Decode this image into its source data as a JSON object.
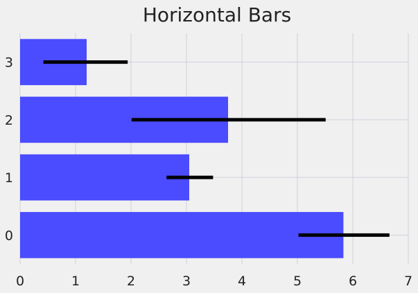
{
  "chart_data": {
    "type": "bar",
    "orientation": "horizontal",
    "title": "Horizontal Bars",
    "xlabel": "",
    "ylabel": "",
    "categories": [
      "0",
      "1",
      "2",
      "3"
    ],
    "values": [
      5.83,
      3.05,
      3.75,
      1.2
    ],
    "error_intervals": [
      [
        5.02,
        6.66
      ],
      [
        2.64,
        3.48
      ],
      [
        2.01,
        5.51
      ],
      [
        0.42,
        1.94
      ]
    ],
    "xlim": [
      0,
      7
    ],
    "xticks": [
      "0",
      "1",
      "2",
      "3",
      "4",
      "5",
      "6",
      "7"
    ],
    "grid": true,
    "colors": {
      "background": "#f0f0f0",
      "bar": "#4b4bff",
      "error_bar": "#000000",
      "grid": "#cfcfdc",
      "text": "#222222"
    }
  }
}
